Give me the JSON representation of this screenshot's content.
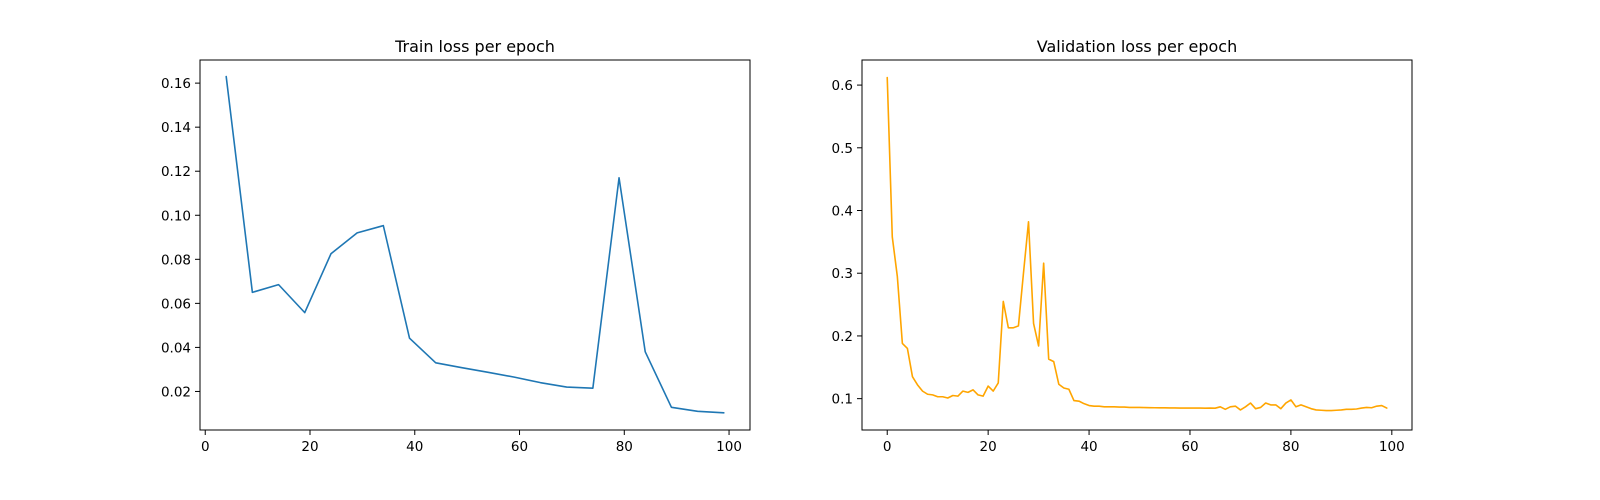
{
  "chart_data": [
    {
      "type": "line",
      "title": "Train loss per epoch",
      "xlabel": "",
      "ylabel": "",
      "xlim": [
        -1,
        104
      ],
      "ylim": [
        0.0025,
        0.1705
      ],
      "xticks": [
        0,
        20,
        40,
        60,
        80,
        100
      ],
      "yticks": [
        0.02,
        0.04,
        0.06,
        0.08,
        0.1,
        0.12,
        0.14,
        0.16
      ],
      "ytick_labels": [
        "0.02",
        "0.04",
        "0.06",
        "0.08",
        "0.10",
        "0.12",
        "0.14",
        "0.16"
      ],
      "xtick_labels": [
        "0",
        "20",
        "40",
        "60",
        "80",
        "100"
      ],
      "grid": false,
      "series": [
        {
          "color": "#1f77b4",
          "x": [
            4,
            9,
            14,
            19,
            24,
            29,
            34,
            39,
            44,
            49,
            54,
            59,
            64,
            69,
            74,
            79,
            84,
            89,
            94,
            99
          ],
          "y": [
            0.163,
            0.065,
            0.0685,
            0.0558,
            0.0825,
            0.092,
            0.0953,
            0.0442,
            0.033,
            0.0308,
            0.0287,
            0.0265,
            0.024,
            0.022,
            0.0215,
            0.117,
            0.038,
            0.0128,
            0.011,
            0.0103
          ]
        }
      ]
    },
    {
      "type": "line",
      "title": "Validation loss per epoch",
      "xlabel": "",
      "ylabel": "",
      "xlim": [
        -5,
        104
      ],
      "ylim": [
        0.05,
        0.64
      ],
      "xticks": [
        0,
        20,
        40,
        60,
        80,
        100
      ],
      "yticks": [
        0.1,
        0.2,
        0.3,
        0.4,
        0.5,
        0.6
      ],
      "ytick_labels": [
        "0.1",
        "0.2",
        "0.3",
        "0.4",
        "0.5",
        "0.6"
      ],
      "xtick_labels": [
        "0",
        "20",
        "40",
        "60",
        "80",
        "100"
      ],
      "grid": false,
      "series": [
        {
          "color": "#ffa500",
          "x": [
            0,
            1,
            2,
            3,
            4,
            5,
            6,
            7,
            8,
            9,
            10,
            11,
            12,
            13,
            14,
            15,
            16,
            17,
            18,
            19,
            20,
            21,
            22,
            23,
            24,
            25,
            26,
            27,
            28,
            29,
            30,
            31,
            32,
            33,
            34,
            35,
            36,
            37,
            38,
            39,
            40,
            41,
            42,
            43,
            44,
            45,
            46,
            47,
            48,
            49,
            50,
            51,
            52,
            53,
            54,
            55,
            56,
            57,
            58,
            59,
            60,
            61,
            62,
            63,
            64,
            65,
            66,
            67,
            68,
            69,
            70,
            71,
            72,
            73,
            74,
            75,
            76,
            77,
            78,
            79,
            80,
            81,
            82,
            83,
            84,
            85,
            86,
            87,
            88,
            89,
            90,
            91,
            92,
            93,
            94,
            95,
            96,
            97,
            98,
            99
          ],
          "y": [
            0.612,
            0.358,
            0.295,
            0.188,
            0.18,
            0.135,
            0.122,
            0.112,
            0.107,
            0.106,
            0.103,
            0.103,
            0.101,
            0.105,
            0.104,
            0.112,
            0.11,
            0.114,
            0.106,
            0.104,
            0.12,
            0.112,
            0.125,
            0.255,
            0.213,
            0.213,
            0.216,
            0.3,
            0.382,
            0.22,
            0.184,
            0.316,
            0.163,
            0.159,
            0.123,
            0.117,
            0.115,
            0.097,
            0.096,
            0.092,
            0.089,
            0.088,
            0.088,
            0.087,
            0.087,
            0.087,
            0.0865,
            0.0865,
            0.086,
            0.086,
            0.086,
            0.0858,
            0.0856,
            0.0855,
            0.0854,
            0.0853,
            0.0852,
            0.0852,
            0.085,
            0.085,
            0.085,
            0.0849,
            0.085,
            0.0848,
            0.085,
            0.0848,
            0.087,
            0.083,
            0.087,
            0.088,
            0.082,
            0.087,
            0.093,
            0.084,
            0.086,
            0.093,
            0.09,
            0.09,
            0.084,
            0.093,
            0.098,
            0.087,
            0.09,
            0.087,
            0.084,
            0.082,
            0.0815,
            0.081,
            0.081,
            0.0815,
            0.082,
            0.083,
            0.083,
            0.0835,
            0.085,
            0.086,
            0.0855,
            0.088,
            0.089,
            0.085
          ]
        }
      ]
    }
  ]
}
